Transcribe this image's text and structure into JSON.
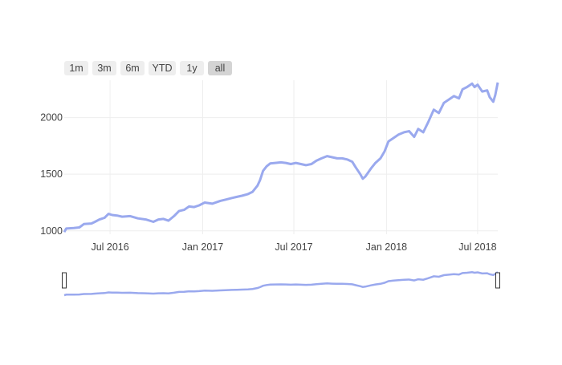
{
  "range_selector": {
    "buttons": [
      {
        "label": "1m",
        "active": false
      },
      {
        "label": "3m",
        "active": false
      },
      {
        "label": "6m",
        "active": false
      },
      {
        "label": "YTD",
        "active": false
      },
      {
        "label": "1y",
        "active": false
      },
      {
        "label": "all",
        "active": true
      }
    ]
  },
  "chart_data": {
    "type": "line",
    "title": "",
    "xlabel": "",
    "ylabel": "",
    "grid": true,
    "line_color": "#9aa9ee",
    "x_range": [
      "2016-04-01",
      "2018-08-10"
    ],
    "y_range": [
      970,
      2330
    ],
    "y_ticks": [
      1000,
      1500,
      2000
    ],
    "x_ticks": [
      {
        "date": "2016-07-01",
        "label": "Jul 2016"
      },
      {
        "date": "2017-01-01",
        "label": "Jan 2017"
      },
      {
        "date": "2017-07-01",
        "label": "Jul 2017"
      },
      {
        "date": "2018-01-01",
        "label": "Jan 2018"
      },
      {
        "date": "2018-07-01",
        "label": "Jul 2018"
      }
    ],
    "series": [
      {
        "x": [
          "2016-04-01",
          "2016-04-05",
          "2016-04-20",
          "2016-05-01",
          "2016-05-10",
          "2016-05-25",
          "2016-06-01",
          "2016-06-10",
          "2016-06-20",
          "2016-06-28",
          "2016-07-05",
          "2016-07-15",
          "2016-07-25",
          "2016-08-10",
          "2016-08-25",
          "2016-09-10",
          "2016-09-25",
          "2016-10-05",
          "2016-10-15",
          "2016-10-25",
          "2016-11-05",
          "2016-11-15",
          "2016-11-25",
          "2016-12-05",
          "2016-12-15",
          "2016-12-25",
          "2017-01-05",
          "2017-01-20",
          "2017-02-05",
          "2017-02-15",
          "2017-02-28",
          "2017-03-10",
          "2017-03-20",
          "2017-04-01",
          "2017-04-10",
          "2017-04-20",
          "2017-04-25",
          "2017-05-01",
          "2017-05-08",
          "2017-05-15",
          "2017-05-25",
          "2017-06-05",
          "2017-06-15",
          "2017-06-25",
          "2017-07-05",
          "2017-07-15",
          "2017-07-25",
          "2017-08-05",
          "2017-08-15",
          "2017-08-25",
          "2017-09-05",
          "2017-09-15",
          "2017-09-25",
          "2017-10-05",
          "2017-10-15",
          "2017-10-25",
          "2017-11-01",
          "2017-11-10",
          "2017-11-15",
          "2017-11-20",
          "2017-12-01",
          "2017-12-10",
          "2017-12-20",
          "2017-12-28",
          "2018-01-05",
          "2018-01-15",
          "2018-01-25",
          "2018-02-05",
          "2018-02-15",
          "2018-02-25",
          "2018-03-05",
          "2018-03-15",
          "2018-03-25",
          "2018-04-05",
          "2018-04-15",
          "2018-04-25",
          "2018-05-05",
          "2018-05-15",
          "2018-05-25",
          "2018-06-01",
          "2018-06-10",
          "2018-06-20",
          "2018-06-25",
          "2018-07-01",
          "2018-07-10",
          "2018-07-20",
          "2018-07-25",
          "2018-08-01",
          "2018-08-05",
          "2018-08-10"
        ],
        "y": [
          990,
          1020,
          1025,
          1030,
          1060,
          1065,
          1080,
          1100,
          1115,
          1150,
          1140,
          1135,
          1125,
          1130,
          1110,
          1100,
          1080,
          1100,
          1105,
          1090,
          1130,
          1175,
          1185,
          1215,
          1210,
          1225,
          1250,
          1240,
          1265,
          1275,
          1290,
          1300,
          1310,
          1325,
          1345,
          1400,
          1450,
          1530,
          1570,
          1595,
          1600,
          1605,
          1600,
          1590,
          1600,
          1590,
          1580,
          1590,
          1620,
          1640,
          1660,
          1650,
          1640,
          1640,
          1630,
          1610,
          1560,
          1500,
          1460,
          1480,
          1550,
          1600,
          1640,
          1700,
          1790,
          1820,
          1850,
          1870,
          1880,
          1830,
          1900,
          1870,
          1960,
          2070,
          2040,
          2130,
          2160,
          2190,
          2170,
          2250,
          2270,
          2300,
          2270,
          2290,
          2230,
          2240,
          2180,
          2140,
          2200,
          2310
        ]
      }
    ]
  }
}
